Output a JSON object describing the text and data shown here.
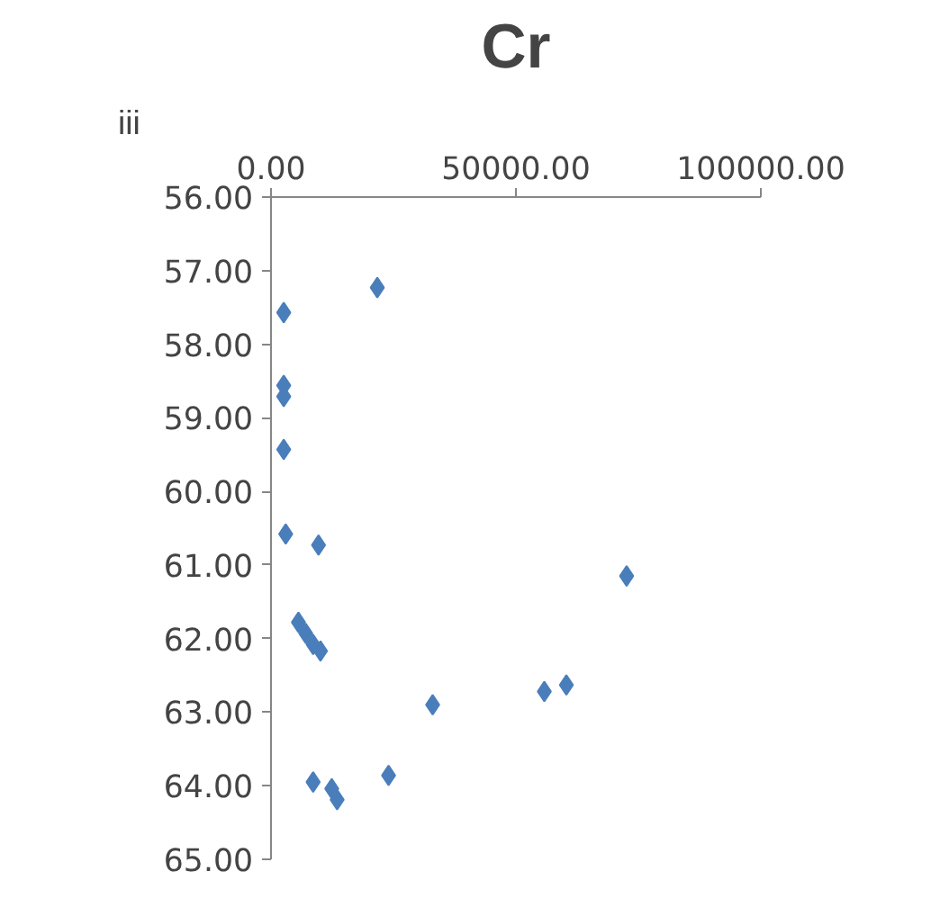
{
  "chart_data": {
    "type": "scatter",
    "title": "Cr",
    "annotations": [
      "iii"
    ],
    "x": [
      21700,
      2600,
      2600,
      2600,
      2600,
      3000,
      9700,
      72600,
      5600,
      7100,
      8600,
      10100,
      33000,
      55800,
      60300,
      8600,
      24000,
      12400,
      13500
    ],
    "values": [
      57.23,
      57.57,
      58.56,
      58.71,
      59.43,
      60.58,
      60.73,
      61.15,
      61.78,
      61.93,
      62.08,
      62.17,
      62.9,
      62.72,
      62.63,
      63.95,
      63.86,
      64.04,
      64.19
    ],
    "color": "#4a7ebb",
    "marker": "diamond",
    "grid": false,
    "xlim": [
      0,
      100000
    ],
    "xticks": [
      {
        "value": 0,
        "label": "0.00"
      },
      {
        "value": 50000,
        "label": "50000.00"
      },
      {
        "value": 100000,
        "label": "100000.00"
      }
    ],
    "ylim": [
      65,
      56
    ],
    "yticks": [
      {
        "value": 56,
        "label": "56.00"
      },
      {
        "value": 57,
        "label": "57.00"
      },
      {
        "value": 58,
        "label": "58.00"
      },
      {
        "value": 59,
        "label": "59.00"
      },
      {
        "value": 60,
        "label": "60.00"
      },
      {
        "value": 61,
        "label": "61.00"
      },
      {
        "value": 62,
        "label": "62.00"
      },
      {
        "value": 63,
        "label": "63.00"
      },
      {
        "value": 64,
        "label": "64.00"
      },
      {
        "value": 65,
        "label": "65.00"
      }
    ]
  }
}
